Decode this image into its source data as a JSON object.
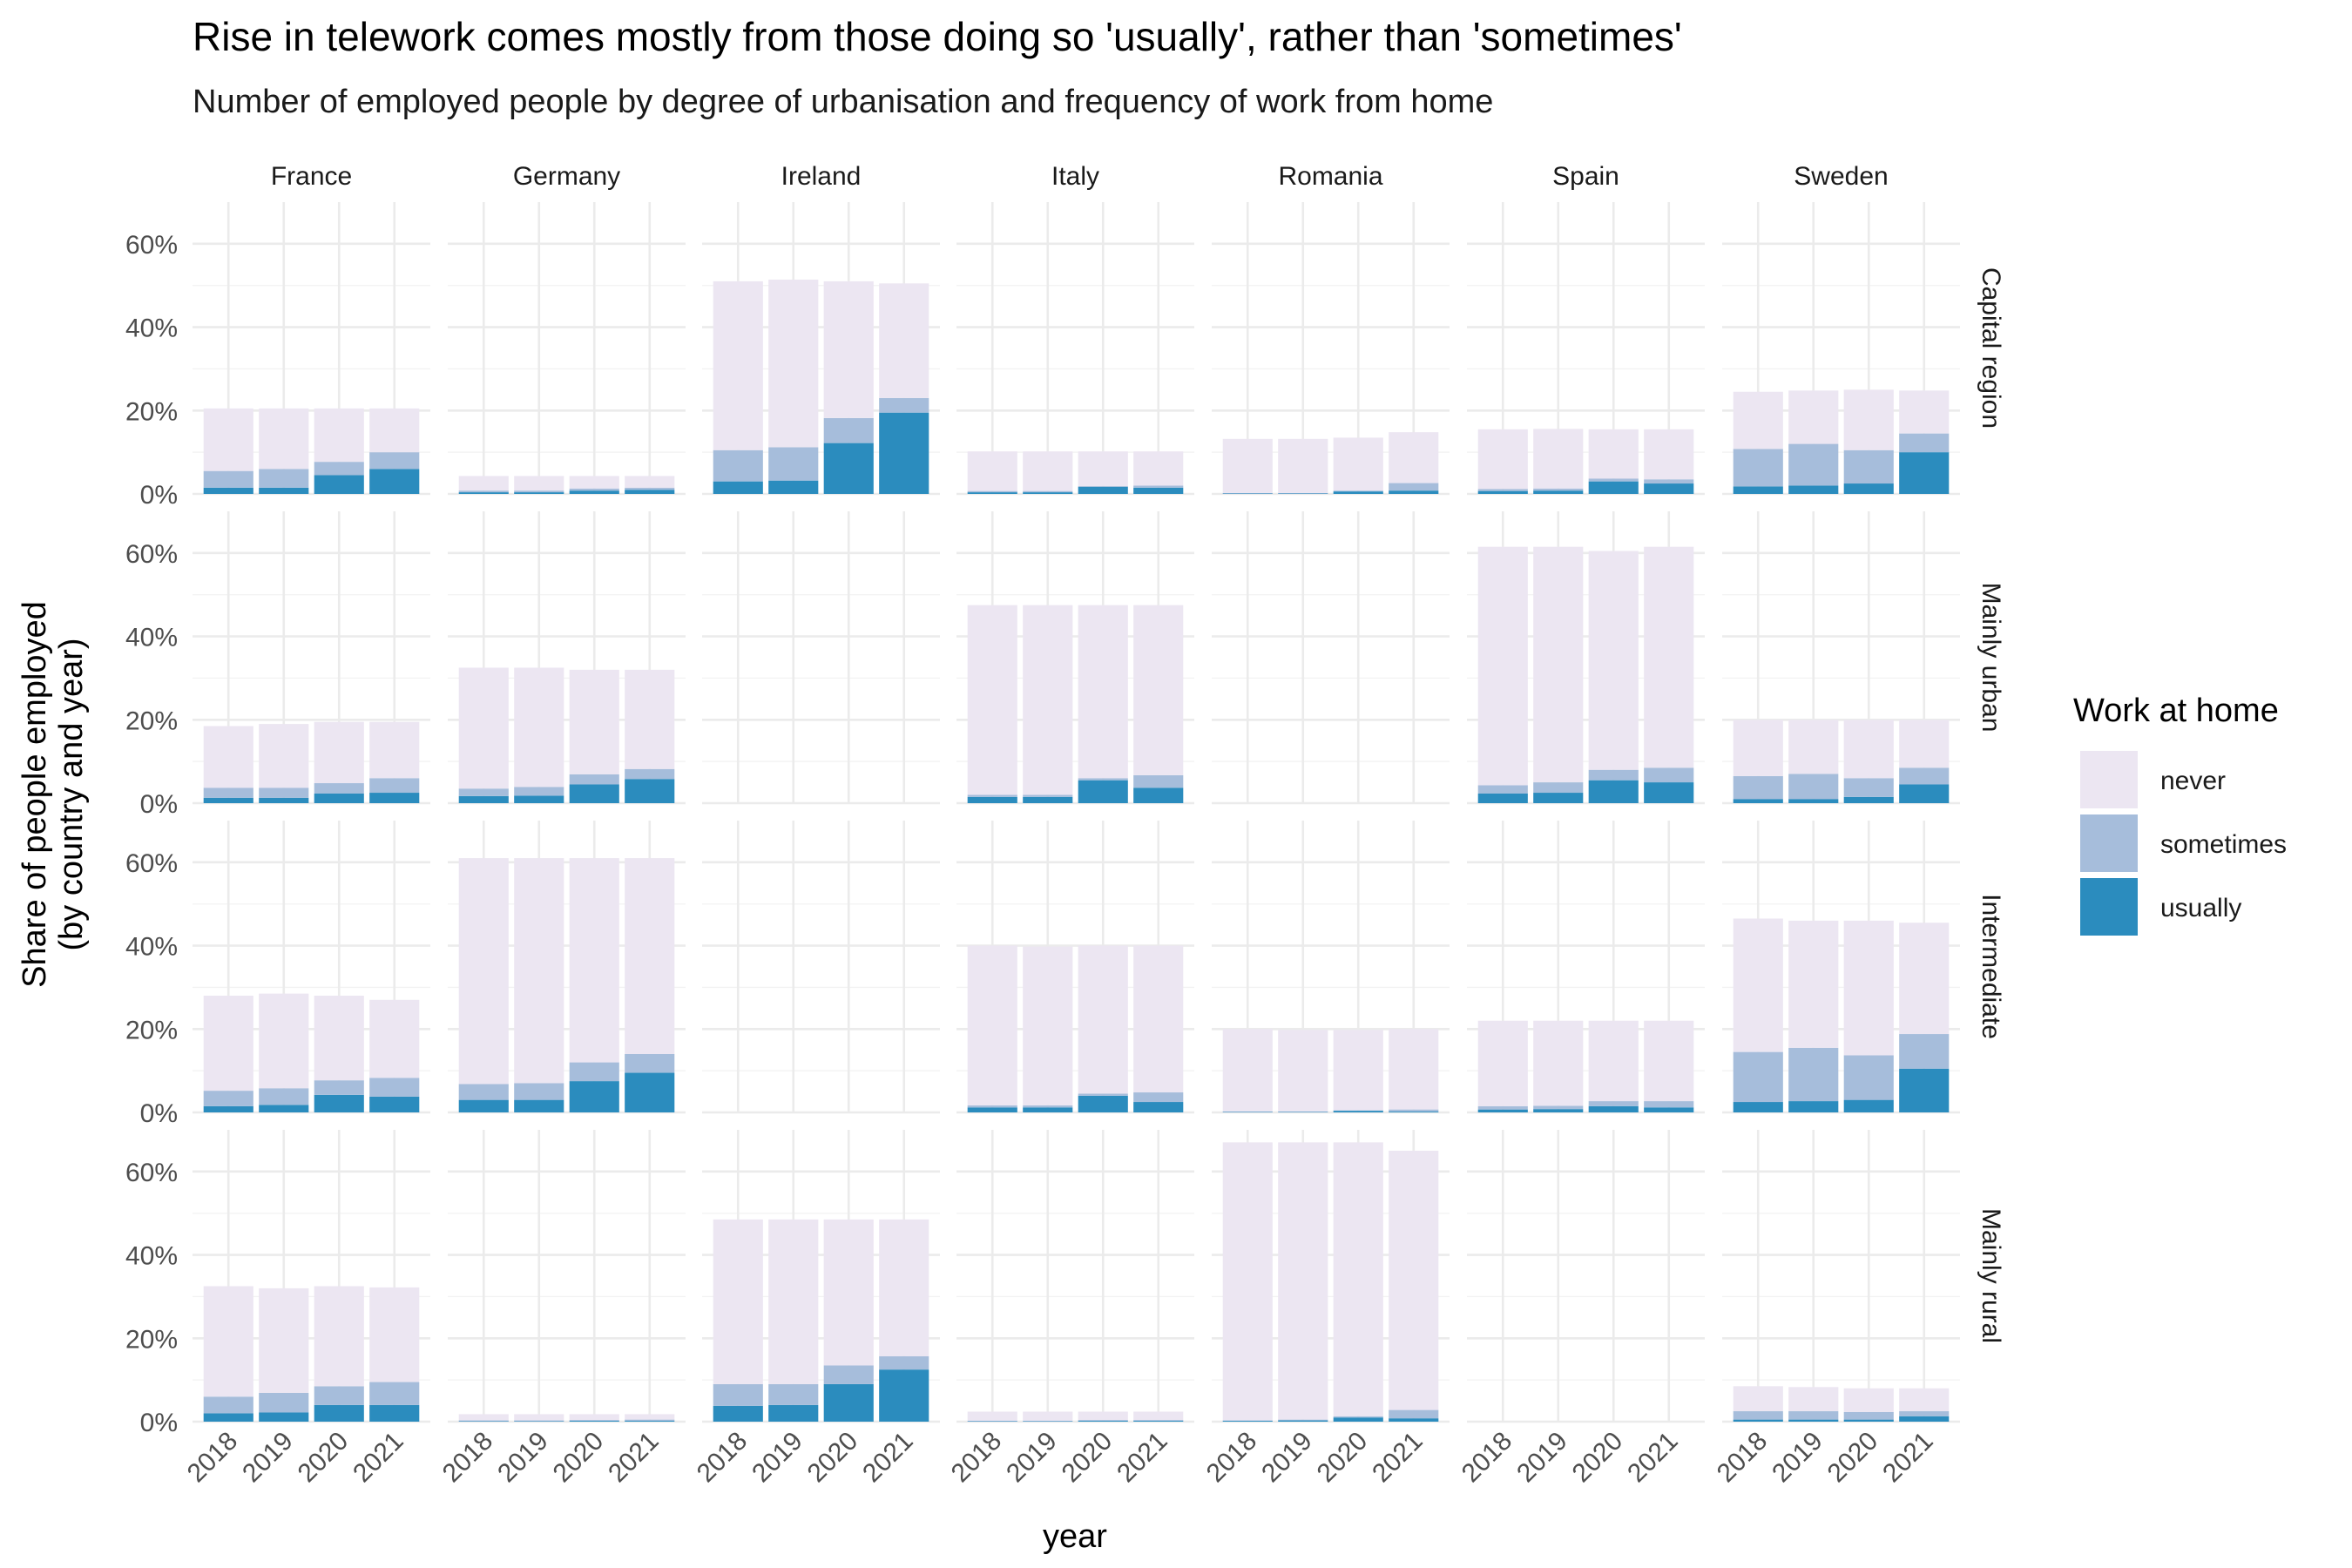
{
  "title": "Rise in telework comes mostly from those doing so 'usually', rather than 'sometimes'",
  "subtitle": "Number of employed people by degree of urbanisation and frequency of work from home",
  "colors": {
    "never": "#ece6f2",
    "sometimes": "#a6bddb",
    "usually": "#2b8cbe"
  },
  "chart_data": {
    "type": "bar",
    "stacked": true,
    "facet_columns": [
      "France",
      "Germany",
      "Ireland",
      "Italy",
      "Romania",
      "Spain",
      "Sweden"
    ],
    "facet_rows": [
      "Capital region",
      "Mainly urban",
      "Intermediate",
      "Mainly rural"
    ],
    "categories": [
      "2018",
      "2019",
      "2020",
      "2021"
    ],
    "xlabel": "year",
    "ylabel": "Share of people employed\n(by country and year)",
    "ylim": [
      0,
      0.7
    ],
    "y_ticks": [
      0,
      0.2,
      0.4,
      0.6
    ],
    "y_tick_labels": [
      "0%",
      "20%",
      "40%",
      "60%"
    ],
    "grid": true,
    "legend": {
      "title": "Work at home",
      "position": "right",
      "entries": [
        "never",
        "sometimes",
        "usually"
      ]
    },
    "panels": {
      "Capital region": {
        "France": {
          "usually": [
            0.015,
            0.015,
            0.045,
            0.06
          ],
          "sometimes": [
            0.04,
            0.045,
            0.032,
            0.04
          ],
          "never": [
            0.15,
            0.145,
            0.128,
            0.105
          ]
        },
        "Germany": {
          "usually": [
            0.004,
            0.004,
            0.008,
            0.01
          ],
          "sometimes": [
            0.004,
            0.004,
            0.005,
            0.005
          ],
          "never": [
            0.035,
            0.035,
            0.03,
            0.028
          ]
        },
        "Ireland": {
          "usually": [
            0.03,
            0.032,
            0.122,
            0.195
          ],
          "sometimes": [
            0.075,
            0.08,
            0.06,
            0.035
          ],
          "never": [
            0.405,
            0.402,
            0.328,
            0.275
          ]
        },
        "Italy": {
          "usually": [
            0.004,
            0.004,
            0.017,
            0.015
          ],
          "sometimes": [
            0.003,
            0.003,
            0.002,
            0.005
          ],
          "never": [
            0.095,
            0.095,
            0.083,
            0.082
          ]
        },
        "Romania": {
          "usually": [
            0.001,
            0.001,
            0.006,
            0.008
          ],
          "sometimes": [
            0.001,
            0.001,
            0.002,
            0.018
          ],
          "never": [
            0.13,
            0.13,
            0.127,
            0.122
          ]
        },
        "Spain": {
          "usually": [
            0.007,
            0.008,
            0.03,
            0.025
          ],
          "sometimes": [
            0.005,
            0.005,
            0.007,
            0.01
          ],
          "never": [
            0.143,
            0.143,
            0.118,
            0.12
          ]
        },
        "Sweden": {
          "usually": [
            0.018,
            0.02,
            0.025,
            0.1
          ],
          "sometimes": [
            0.09,
            0.1,
            0.08,
            0.045
          ],
          "never": [
            0.137,
            0.128,
            0.145,
            0.103
          ]
        }
      },
      "Mainly urban": {
        "France": {
          "usually": [
            0.013,
            0.013,
            0.023,
            0.025
          ],
          "sometimes": [
            0.024,
            0.024,
            0.025,
            0.035
          ],
          "never": [
            0.148,
            0.153,
            0.147,
            0.135
          ]
        },
        "Germany": {
          "usually": [
            0.017,
            0.018,
            0.045,
            0.058
          ],
          "sometimes": [
            0.018,
            0.021,
            0.024,
            0.024
          ],
          "never": [
            0.29,
            0.286,
            0.251,
            0.238
          ]
        },
        "Ireland": {
          "usually": [
            0,
            0,
            0,
            0
          ],
          "sometimes": [
            0,
            0,
            0,
            0
          ],
          "never": [
            0,
            0,
            0,
            0
          ]
        },
        "Italy": {
          "usually": [
            0.015,
            0.015,
            0.055,
            0.037
          ],
          "sometimes": [
            0.005,
            0.005,
            0.005,
            0.03
          ],
          "never": [
            0.455,
            0.455,
            0.415,
            0.408
          ]
        },
        "Romania": {
          "usually": [
            0,
            0,
            0,
            0
          ],
          "sometimes": [
            0,
            0,
            0,
            0
          ],
          "never": [
            0,
            0,
            0,
            0
          ]
        },
        "Spain": {
          "usually": [
            0.023,
            0.025,
            0.055,
            0.05
          ],
          "sometimes": [
            0.02,
            0.025,
            0.025,
            0.035
          ],
          "never": [
            0.572,
            0.565,
            0.525,
            0.53
          ]
        },
        "Sweden": {
          "usually": [
            0.01,
            0.01,
            0.015,
            0.045
          ],
          "sometimes": [
            0.055,
            0.06,
            0.045,
            0.04
          ],
          "never": [
            0.135,
            0.13,
            0.14,
            0.115
          ]
        }
      },
      "Intermediate": {
        "France": {
          "usually": [
            0.015,
            0.018,
            0.042,
            0.038
          ],
          "sometimes": [
            0.037,
            0.04,
            0.035,
            0.045
          ],
          "never": [
            0.228,
            0.227,
            0.203,
            0.187
          ]
        },
        "Germany": {
          "usually": [
            0.03,
            0.03,
            0.075,
            0.095
          ],
          "sometimes": [
            0.038,
            0.04,
            0.045,
            0.045
          ],
          "never": [
            0.542,
            0.54,
            0.49,
            0.47
          ]
        },
        "Ireland": {
          "usually": [
            0,
            0,
            0,
            0
          ],
          "sometimes": [
            0,
            0,
            0,
            0
          ],
          "never": [
            0,
            0,
            0,
            0
          ]
        },
        "Italy": {
          "usually": [
            0.012,
            0.012,
            0.04,
            0.025
          ],
          "sometimes": [
            0.005,
            0.005,
            0.005,
            0.023
          ],
          "never": [
            0.383,
            0.381,
            0.355,
            0.352
          ]
        },
        "Romania": {
          "usually": [
            0.001,
            0.001,
            0.004,
            0.002
          ],
          "sometimes": [
            0.001,
            0.001,
            0.001,
            0.005
          ],
          "never": [
            0.198,
            0.196,
            0.193,
            0.193
          ]
        },
        "Spain": {
          "usually": [
            0.007,
            0.008,
            0.015,
            0.012
          ],
          "sometimes": [
            0.008,
            0.008,
            0.012,
            0.015
          ],
          "never": [
            0.205,
            0.204,
            0.193,
            0.193
          ]
        },
        "Sweden": {
          "usually": [
            0.025,
            0.027,
            0.03,
            0.105
          ],
          "sometimes": [
            0.12,
            0.128,
            0.107,
            0.083
          ],
          "never": [
            0.32,
            0.305,
            0.323,
            0.267
          ]
        }
      },
      "Mainly rural": {
        "France": {
          "usually": [
            0.02,
            0.022,
            0.04,
            0.04
          ],
          "sometimes": [
            0.04,
            0.047,
            0.045,
            0.055
          ],
          "never": [
            0.265,
            0.251,
            0.24,
            0.227
          ]
        },
        "Germany": {
          "usually": [
            0.001,
            0.001,
            0.002,
            0.002
          ],
          "sometimes": [
            0.002,
            0.002,
            0.002,
            0.003
          ],
          "never": [
            0.015,
            0.015,
            0.014,
            0.013
          ]
        },
        "Ireland": {
          "usually": [
            0.038,
            0.04,
            0.09,
            0.125
          ],
          "sometimes": [
            0.052,
            0.05,
            0.045,
            0.032
          ],
          "never": [
            0.395,
            0.395,
            0.35,
            0.328
          ]
        },
        "Italy": {
          "usually": [
            0.001,
            0.001,
            0.002,
            0.002
          ],
          "sometimes": [
            0.001,
            0.001,
            0.002,
            0.002
          ],
          "never": [
            0.022,
            0.022,
            0.02,
            0.02
          ]
        },
        "Romania": {
          "usually": [
            0.002,
            0.003,
            0.01,
            0.008
          ],
          "sometimes": [
            0.001,
            0.002,
            0.003,
            0.02
          ],
          "never": [
            0.667,
            0.665,
            0.657,
            0.622
          ]
        },
        "Spain": {
          "usually": [
            0,
            0,
            0,
            0
          ],
          "sometimes": [
            0,
            0,
            0,
            0
          ],
          "never": [
            0,
            0,
            0,
            0
          ]
        },
        "Sweden": {
          "usually": [
            0.005,
            0.005,
            0.005,
            0.013
          ],
          "sometimes": [
            0.02,
            0.02,
            0.018,
            0.012
          ],
          "never": [
            0.06,
            0.058,
            0.057,
            0.055
          ]
        }
      }
    }
  }
}
